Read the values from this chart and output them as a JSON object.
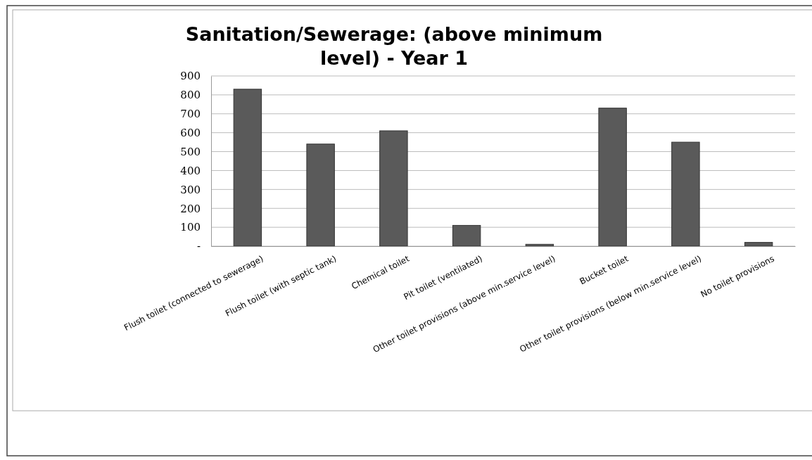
{
  "chart_data": {
    "type": "bar",
    "title": "Sanitation/Sewerage: (above minimum level) - Year 1",
    "categories": [
      "Flush toilet (connected to sewerage)",
      "Flush toilet (with septic tank)",
      "Chemical toilet",
      "Pit toilet (ventilated)",
      "Other toilet provisions (above  min.service level)",
      "Bucket toilet",
      "Other toilet provisions (below min.service level)",
      "No toilet provisions"
    ],
    "values": [
      830,
      540,
      610,
      110,
      10,
      730,
      550,
      20
    ],
    "color": "#5a5a5a",
    "ylim": [
      0,
      900
    ],
    "yticks": [
      {
        "value": 0,
        "label": "-"
      },
      100,
      200,
      300,
      400,
      500,
      600,
      700,
      800,
      900
    ],
    "grid": "y"
  }
}
